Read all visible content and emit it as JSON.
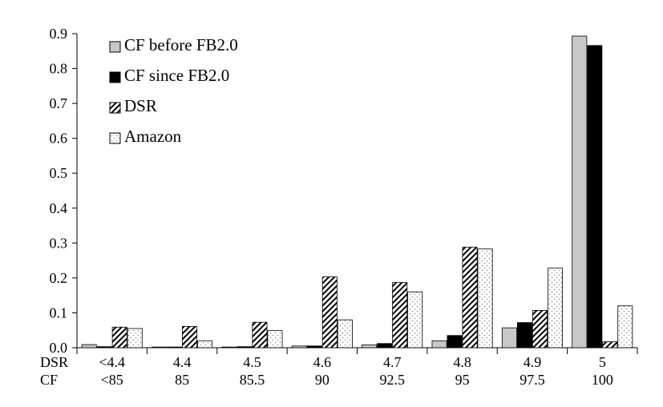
{
  "chart_data": {
    "type": "bar",
    "row_labels": [
      "DSR",
      "CF"
    ],
    "categories": [
      {
        "dsr": "<4.4",
        "cf": "<85"
      },
      {
        "dsr": "4.4",
        "cf": "85"
      },
      {
        "dsr": "4.5",
        "cf": "85.5"
      },
      {
        "dsr": "4.6",
        "cf": "90"
      },
      {
        "dsr": "4.7",
        "cf": "92.5"
      },
      {
        "dsr": "4.8",
        "cf": "95"
      },
      {
        "dsr": "4.9",
        "cf": "97.5"
      },
      {
        "dsr": "5",
        "cf": "100"
      }
    ],
    "series": [
      {
        "name": "CF before FB2.0",
        "pattern": "solid-gray",
        "color": "#c8c8c8",
        "values": [
          0.009,
          0.002,
          0.002,
          0.005,
          0.008,
          0.02,
          0.057,
          0.893
        ]
      },
      {
        "name": "CF since FB2.0",
        "pattern": "solid-black",
        "color": "#000000",
        "values": [
          0.003,
          0.002,
          0.003,
          0.005,
          0.012,
          0.035,
          0.072,
          0.866
        ]
      },
      {
        "name": "DSR",
        "pattern": "diagonal-hatch",
        "color": "#000000",
        "values": [
          0.059,
          0.061,
          0.073,
          0.203,
          0.187,
          0.288,
          0.107,
          0.017
        ]
      },
      {
        "name": "Amazon",
        "pattern": "dotted",
        "color": "#999999",
        "values": [
          0.055,
          0.02,
          0.049,
          0.08,
          0.16,
          0.283,
          0.228,
          0.12
        ]
      }
    ],
    "yticks": [
      "0.0",
      "0.1",
      "0.2",
      "0.3",
      "0.4",
      "0.5",
      "0.6",
      "0.7",
      "0.8",
      "0.9"
    ],
    "ylim": [
      0,
      0.9
    ],
    "legend_position": "top-left",
    "grid": false
  }
}
